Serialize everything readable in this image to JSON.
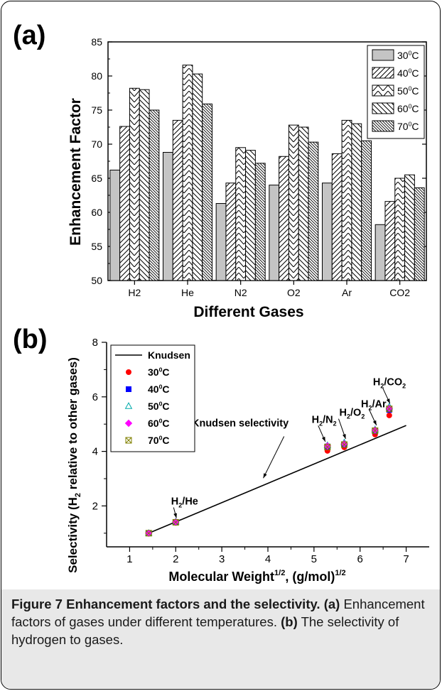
{
  "chart_data": [
    {
      "type": "bar",
      "panel_label": "(a)",
      "xlabel": "Different Gases",
      "ylabel": "Enhancement Factor",
      "ylim": [
        50,
        85
      ],
      "yticks": [
        50,
        55,
        60,
        65,
        70,
        75,
        80,
        85
      ],
      "categories": [
        "H2",
        "He",
        "N2",
        "O2",
        "Ar",
        "CO2"
      ],
      "legend_position": "top-right",
      "series": [
        {
          "name": "30°C",
          "label_base": "30",
          "pattern": "solid",
          "values": [
            66.2,
            68.8,
            61.3,
            64.0,
            64.3,
            58.2
          ]
        },
        {
          "name": "40°C",
          "label_base": "40",
          "pattern": "diag-up",
          "values": [
            72.6,
            73.5,
            64.3,
            68.2,
            68.6,
            61.6
          ]
        },
        {
          "name": "50°C",
          "label_base": "50",
          "pattern": "zigzag",
          "values": [
            78.2,
            81.6,
            69.5,
            72.8,
            73.5,
            65.0
          ]
        },
        {
          "name": "60°C",
          "label_base": "60",
          "pattern": "diag-down",
          "values": [
            78.0,
            80.3,
            69.1,
            72.5,
            73.0,
            65.5
          ]
        },
        {
          "name": "70°C",
          "label_base": "70",
          "pattern": "diag-dense",
          "values": [
            75.0,
            75.9,
            67.2,
            70.3,
            70.5,
            63.6
          ]
        }
      ]
    },
    {
      "type": "scatter",
      "panel_label": "(b)",
      "xlabel_base": "Molecular Weight",
      "xlabel_sup": "1/2",
      "xlabel_unit": ", (g/mol)",
      "xlabel_unit_sup": "1/2",
      "ylabel_pre": "Selectivity  (H",
      "ylabel_sub": "2",
      "ylabel_post": " relative to other gases)",
      "xlim": [
        0.5,
        7.5
      ],
      "ylim": [
        0.5,
        8
      ],
      "xticks": [
        1,
        2,
        3,
        4,
        5,
        6,
        7
      ],
      "yticks": [
        2,
        4,
        6,
        8
      ],
      "line": {
        "name": "Knudsen",
        "x": [
          1.414,
          7.0
        ],
        "y": [
          1.0,
          4.95
        ]
      },
      "line_annotation": "Knudsen selectivity",
      "series": [
        {
          "name": "30°C",
          "label_base": "30",
          "marker": "circle",
          "color": "#ff0000",
          "x": [
            1.414,
            2.0,
            5.292,
            5.657,
            6.325,
            6.633
          ],
          "y": [
            1.0,
            1.38,
            4.02,
            4.15,
            4.62,
            5.32
          ]
        },
        {
          "name": "40°C",
          "label_base": "40",
          "marker": "square",
          "color": "#0000ff",
          "x": [
            1.414,
            2.0,
            5.292,
            5.657,
            6.325,
            6.633
          ],
          "y": [
            1.0,
            1.4,
            4.18,
            4.25,
            4.74,
            5.52
          ]
        },
        {
          "name": "50°C",
          "label_base": "50",
          "marker": "triangle",
          "color": "#00aaaa",
          "x": [
            1.414,
            2.0,
            5.292,
            5.657,
            6.325,
            6.633
          ],
          "y": [
            1.0,
            1.42,
            4.22,
            4.32,
            4.8,
            5.64
          ]
        },
        {
          "name": "60°C",
          "label_base": "60",
          "marker": "diamond",
          "color": "#ff00ff",
          "x": [
            1.414,
            2.0,
            5.292,
            5.657,
            6.325,
            6.633
          ],
          "y": [
            1.0,
            1.41,
            4.2,
            4.28,
            4.78,
            5.58
          ]
        },
        {
          "name": "70°C",
          "label_base": "70",
          "marker": "boxx",
          "color": "#808000",
          "x": [
            1.414,
            2.0,
            5.292,
            5.657,
            6.325,
            6.633
          ],
          "y": [
            1.0,
            1.4,
            4.16,
            4.25,
            4.76,
            5.56
          ]
        }
      ],
      "annotations": [
        {
          "pre": "H",
          "sub1": "2",
          "mid": "/He",
          "sub2": "",
          "x": 2.0,
          "y": 1.4
        },
        {
          "pre": "H",
          "sub1": "2",
          "mid": "/N",
          "sub2": "2",
          "x": 5.292,
          "y": 4.2
        },
        {
          "pre": "H",
          "sub1": "2",
          "mid": "/O",
          "sub2": "2",
          "x": 5.657,
          "y": 4.3
        },
        {
          "pre": "H",
          "sub1": "2",
          "mid": "/Ar",
          "sub2": "",
          "x": 6.325,
          "y": 4.8
        },
        {
          "pre": "H",
          "sub1": "2",
          "mid": "/CO",
          "sub2": "2",
          "x": 6.633,
          "y": 5.6
        }
      ]
    }
  ],
  "caption": {
    "title": "Figure 7 Enhancement factors and the selectivity.",
    "a_label": "(a)",
    "a_text": "Enhancement factors of gases under different temperatures.",
    "b_label": "(b)",
    "b_text": "The selectivity of hydrogen to gases."
  }
}
